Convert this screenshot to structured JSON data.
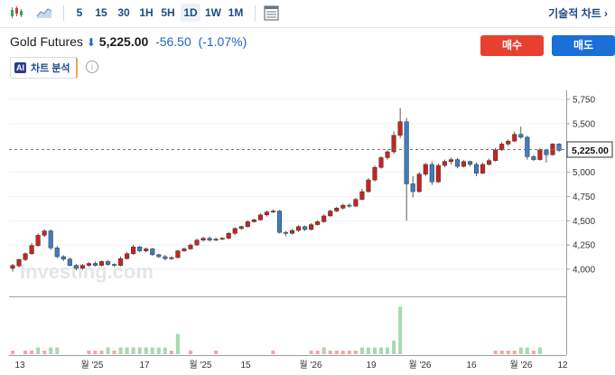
{
  "toolbar": {
    "chart_type_icons": [
      "candlestick-icon",
      "area-chart-icon"
    ],
    "timeframes": [
      "5",
      "15",
      "30",
      "1H",
      "5H",
      "1D",
      "1W",
      "1M"
    ],
    "selected_timeframe": "1D",
    "settings_icon": "chart-settings-icon",
    "technical_chart_label": "기술적 차트 ›"
  },
  "instrument": {
    "name": "Gold Futures",
    "direction_icon": "down-arrow-icon",
    "price": "5,225.00",
    "change": "-56.50",
    "change_pct": "(-1.07%)"
  },
  "buttons": {
    "buy": "매수",
    "sell": "매도",
    "buy_color": "#e8402f",
    "sell_color": "#1a6fd8"
  },
  "analysis_chip": {
    "badge": "AI",
    "label": "차트 분석",
    "info_icon": "info-icon"
  },
  "watermark": "Investing.com",
  "chart_data": {
    "type": "candlestick",
    "y_ticks": [
      "5,750",
      "5,500",
      "5,250",
      "5,000",
      "4,750",
      "4,500",
      "4,250",
      "4,000"
    ],
    "ylim": [
      3900,
      5750
    ],
    "last_price_label": "5,225.00",
    "x_ticks": [
      "13",
      "월 '25",
      "17",
      "월 '25",
      "15",
      "월 '26",
      "19",
      "월 '26",
      "16",
      "월 '26",
      "12"
    ],
    "up_color": "#c8241f",
    "down_color": "#3d7ec0",
    "volume_up_color": "#f3a6a6",
    "volume_down_color": "#a7d9b4",
    "candles": [
      [
        4010,
        4040,
        3975,
        4055
      ],
      [
        4035,
        4100,
        4020,
        4110
      ],
      [
        4100,
        4160,
        4085,
        4175
      ],
      [
        4160,
        4245,
        4150,
        4270
      ],
      [
        4245,
        4350,
        4230,
        4370
      ],
      [
        4350,
        4395,
        4330,
        4410
      ],
      [
        4395,
        4220,
        4200,
        4410
      ],
      [
        4220,
        4130,
        4115,
        4240
      ],
      [
        4130,
        4105,
        4085,
        4145
      ],
      [
        4105,
        4040,
        4030,
        4120
      ],
      [
        4040,
        4010,
        3990,
        4055
      ],
      [
        4010,
        4040,
        3995,
        4055
      ],
      [
        4040,
        4060,
        4025,
        4075
      ],
      [
        4060,
        4040,
        4030,
        4080
      ],
      [
        4040,
        4080,
        4030,
        4090
      ],
      [
        4080,
        4050,
        4035,
        4095
      ],
      [
        4050,
        4040,
        4025,
        4060
      ],
      [
        4040,
        4110,
        4030,
        4130
      ],
      [
        4110,
        4160,
        4100,
        4180
      ],
      [
        4160,
        4230,
        4150,
        4250
      ],
      [
        4230,
        4190,
        4175,
        4240
      ],
      [
        4190,
        4210,
        4175,
        4225
      ],
      [
        4210,
        4150,
        4140,
        4220
      ],
      [
        4150,
        4130,
        4115,
        4160
      ],
      [
        4130,
        4110,
        4090,
        4150
      ],
      [
        4110,
        4120,
        4095,
        4135
      ],
      [
        4120,
        4190,
        4115,
        4200
      ],
      [
        4190,
        4210,
        4180,
        4225
      ],
      [
        4210,
        4250,
        4200,
        4265
      ],
      [
        4250,
        4300,
        4240,
        4315
      ],
      [
        4300,
        4320,
        4285,
        4335
      ],
      [
        4320,
        4300,
        4285,
        4340
      ],
      [
        4300,
        4310,
        4290,
        4325
      ],
      [
        4310,
        4320,
        4300,
        4330
      ],
      [
        4320,
        4370,
        4310,
        4385
      ],
      [
        4370,
        4420,
        4355,
        4435
      ],
      [
        4420,
        4440,
        4405,
        4450
      ],
      [
        4440,
        4490,
        4430,
        4505
      ],
      [
        4490,
        4510,
        4480,
        4520
      ],
      [
        4510,
        4560,
        4500,
        4575
      ],
      [
        4560,
        4590,
        4545,
        4605
      ],
      [
        4590,
        4600,
        4580,
        4615
      ],
      [
        4600,
        4380,
        4370,
        4610
      ],
      [
        4380,
        4370,
        4340,
        4395
      ],
      [
        4370,
        4400,
        4360,
        4415
      ],
      [
        4400,
        4440,
        4385,
        4455
      ],
      [
        4440,
        4410,
        4395,
        4450
      ],
      [
        4410,
        4460,
        4400,
        4475
      ],
      [
        4460,
        4490,
        4450,
        4505
      ],
      [
        4490,
        4550,
        4480,
        4565
      ],
      [
        4550,
        4600,
        4540,
        4615
      ],
      [
        4600,
        4630,
        4590,
        4645
      ],
      [
        4630,
        4660,
        4615,
        4675
      ],
      [
        4660,
        4650,
        4635,
        4680
      ],
      [
        4650,
        4720,
        4645,
        4735
      ],
      [
        4720,
        4800,
        4710,
        4830
      ],
      [
        4800,
        4920,
        4790,
        4940
      ],
      [
        4920,
        5050,
        4905,
        5070
      ],
      [
        5050,
        5150,
        5035,
        5165
      ],
      [
        5150,
        5210,
        5130,
        5230
      ],
      [
        5210,
        5380,
        5190,
        5420
      ],
      [
        5380,
        5520,
        5350,
        5660
      ],
      [
        5520,
        4880,
        4500,
        5560
      ],
      [
        4880,
        4800,
        4740,
        4960
      ],
      [
        4800,
        4980,
        4790,
        5000
      ],
      [
        4980,
        5080,
        4960,
        5095
      ],
      [
        5080,
        4900,
        4870,
        5110
      ],
      [
        4900,
        5070,
        4890,
        5090
      ],
      [
        5070,
        5110,
        5050,
        5130
      ],
      [
        5110,
        5130,
        5080,
        5150
      ],
      [
        5130,
        5060,
        5040,
        5145
      ],
      [
        5060,
        5110,
        5050,
        5125
      ],
      [
        5110,
        5080,
        5060,
        5120
      ],
      [
        5080,
        4990,
        4960,
        5100
      ],
      [
        4990,
        5080,
        4980,
        5100
      ],
      [
        5080,
        5120,
        5070,
        5140
      ],
      [
        5120,
        5230,
        5110,
        5250
      ],
      [
        5230,
        5290,
        5220,
        5310
      ],
      [
        5290,
        5320,
        5270,
        5340
      ],
      [
        5320,
        5390,
        5310,
        5420
      ],
      [
        5390,
        5360,
        5345,
        5470
      ],
      [
        5360,
        5160,
        5130,
        5375
      ],
      [
        5160,
        5130,
        5115,
        5180
      ],
      [
        5130,
        5230,
        5120,
        5245
      ],
      [
        5230,
        5180,
        5100,
        5240
      ],
      [
        5180,
        5290,
        5170,
        5300
      ],
      [
        5290,
        5225,
        5210,
        5300
      ]
    ],
    "volume": [
      [
        1,
        0
      ],
      [
        0,
        0
      ],
      [
        1,
        0
      ],
      [
        1,
        0
      ],
      [
        1,
        1
      ],
      [
        1,
        0
      ],
      [
        0,
        1
      ],
      [
        0,
        1
      ],
      [
        0,
        0
      ],
      [
        0,
        0
      ],
      [
        0,
        0
      ],
      [
        0,
        0
      ],
      [
        1,
        0
      ],
      [
        1,
        0
      ],
      [
        1,
        0
      ],
      [
        0,
        1
      ],
      [
        1,
        0
      ],
      [
        1,
        1
      ],
      [
        1,
        1
      ],
      [
        1,
        1
      ],
      [
        0,
        1
      ],
      [
        1,
        1
      ],
      [
        0,
        1
      ],
      [
        0,
        1
      ],
      [
        0,
        1
      ],
      [
        1,
        0
      ],
      [
        1,
        3
      ],
      [
        0,
        0
      ],
      [
        1,
        0
      ],
      [
        0,
        0
      ],
      [
        0,
        0
      ],
      [
        0,
        0
      ],
      [
        1,
        0
      ],
      [
        0,
        0
      ],
      [
        0,
        0
      ],
      [
        0,
        0
      ],
      [
        0,
        0
      ],
      [
        0,
        0
      ],
      [
        0,
        0
      ],
      [
        0,
        0
      ],
      [
        0,
        0
      ],
      [
        1,
        0
      ],
      [
        0,
        0
      ],
      [
        0,
        0
      ],
      [
        0,
        0
      ],
      [
        0,
        0
      ],
      [
        0,
        0
      ],
      [
        1,
        0
      ],
      [
        1,
        0
      ],
      [
        1,
        1
      ],
      [
        1,
        0
      ],
      [
        1,
        0
      ],
      [
        1,
        0
      ],
      [
        1,
        0
      ],
      [
        1,
        0
      ],
      [
        1,
        1
      ],
      [
        1,
        1
      ],
      [
        1,
        1
      ],
      [
        1,
        1
      ],
      [
        1,
        1
      ],
      [
        1,
        2
      ],
      [
        1,
        7
      ],
      [
        0,
        0
      ],
      [
        0,
        0
      ],
      [
        0,
        0
      ],
      [
        0,
        0
      ],
      [
        0,
        0
      ],
      [
        0,
        0
      ],
      [
        0,
        0
      ],
      [
        0,
        0
      ],
      [
        0,
        0
      ],
      [
        0,
        0
      ],
      [
        0,
        0
      ],
      [
        0,
        0
      ],
      [
        0,
        0
      ],
      [
        0,
        0
      ],
      [
        1,
        0
      ],
      [
        1,
        0
      ],
      [
        1,
        0
      ],
      [
        1,
        0
      ],
      [
        1,
        1
      ],
      [
        1,
        1
      ],
      [
        1,
        0
      ],
      [
        1,
        1
      ],
      [
        0,
        0
      ],
      [
        0,
        0
      ],
      [
        0,
        0
      ]
    ]
  }
}
